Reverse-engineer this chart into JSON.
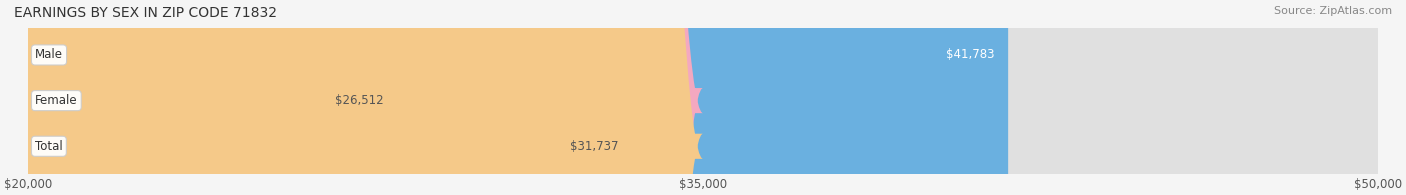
{
  "title": "EARNINGS BY SEX IN ZIP CODE 71832",
  "source": "Source: ZipAtlas.com",
  "categories": [
    "Male",
    "Female",
    "Total"
  ],
  "values": [
    41783,
    26512,
    31737
  ],
  "bar_colors": [
    "#6ab0e0",
    "#f4a8c0",
    "#f5c989"
  ],
  "bar_bg_color": "#e8e8e8",
  "label_bg_color": "#ffffff",
  "xmin": 20000,
  "xmax": 50000,
  "xticks": [
    20000,
    35000,
    50000
  ],
  "xtick_labels": [
    "$20,000",
    "$35,000",
    "$50,000"
  ],
  "bar_height": 0.55,
  "title_fontsize": 10,
  "source_fontsize": 8,
  "label_fontsize": 8.5,
  "value_fontsize": 8.5,
  "tick_fontsize": 8.5,
  "background_color": "#f5f5f5",
  "bar_bg_alpha": 1.0
}
